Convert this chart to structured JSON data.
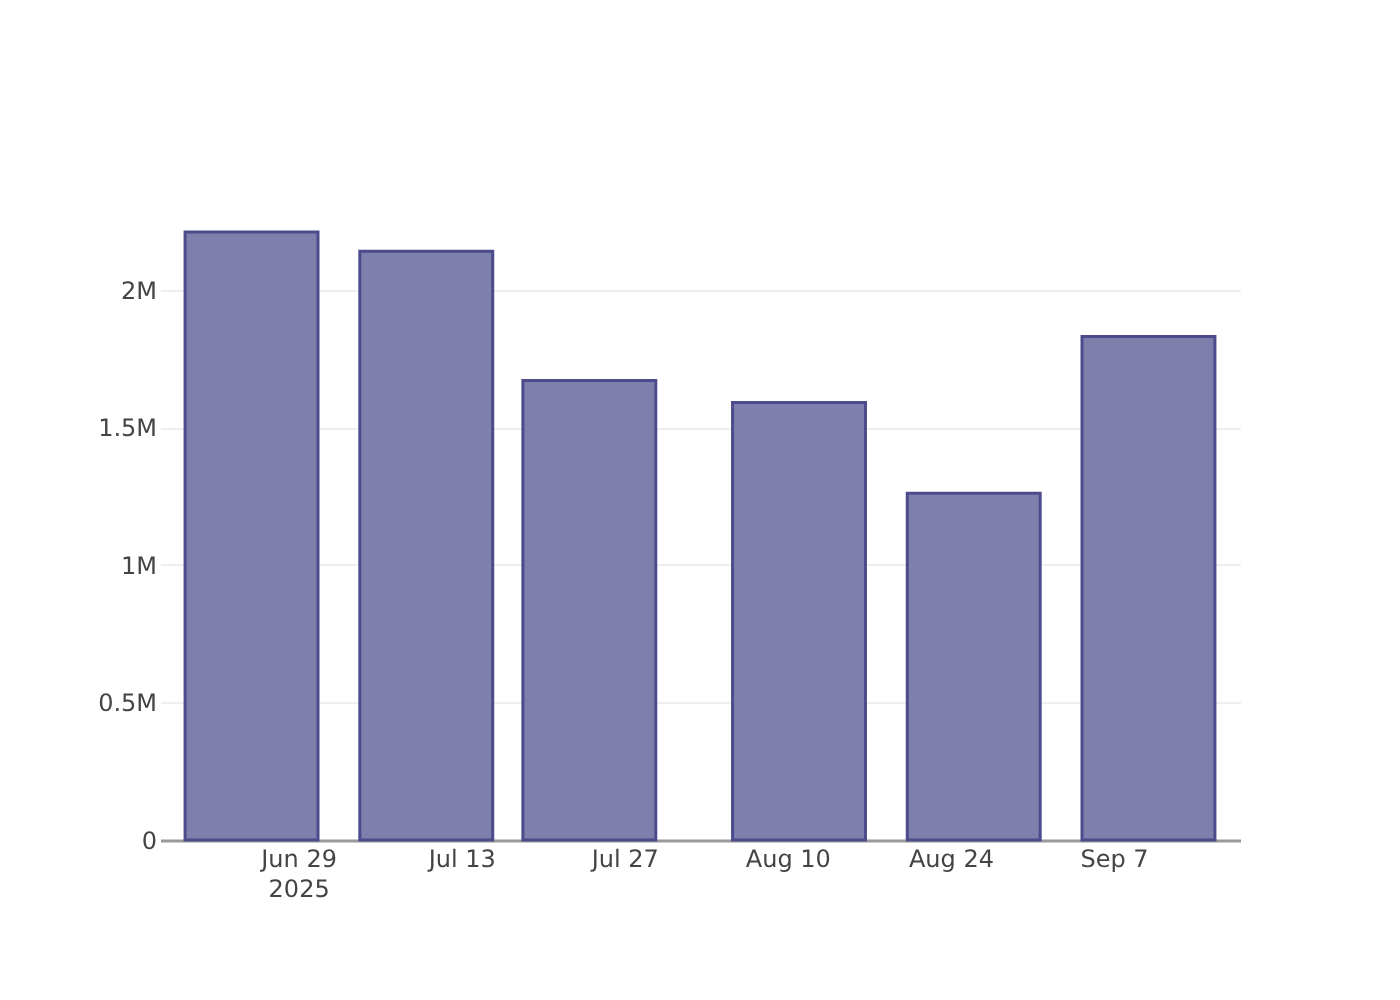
{
  "chart_data": {
    "type": "bar",
    "x": [
      "2025-06-25",
      "2025-07-10",
      "2025-07-24",
      "2025-08-11",
      "2025-08-26",
      "2025-09-10"
    ],
    "values": [
      2210000,
      2140000,
      1670000,
      1590000,
      1260000,
      1830000
    ],
    "color": "#7f7fae",
    "xlim": [
      "2025-06-18",
      "2025-09-17"
    ],
    "xticks": [
      {
        "value": "2025-06-29",
        "label": "Jun 29\n2025"
      },
      {
        "value": "2025-07-13",
        "label": "Jul 13"
      },
      {
        "value": "2025-07-27",
        "label": "Jul 27"
      },
      {
        "value": "2025-08-10",
        "label": "Aug 10"
      },
      {
        "value": "2025-08-24",
        "label": "Aug 24"
      },
      {
        "value": "2025-09-07",
        "label": "Sep 7"
      }
    ],
    "ylim": [
      0,
      2210000
    ],
    "yticks": [
      0,
      {
        "value": 500000,
        "label": "0.5M"
      },
      {
        "value": 1000000,
        "label": "1M"
      },
      {
        "value": 1500000,
        "label": "1.5M"
      },
      {
        "value": 2000000,
        "label": "2M"
      }
    ],
    "grid": "y"
  }
}
